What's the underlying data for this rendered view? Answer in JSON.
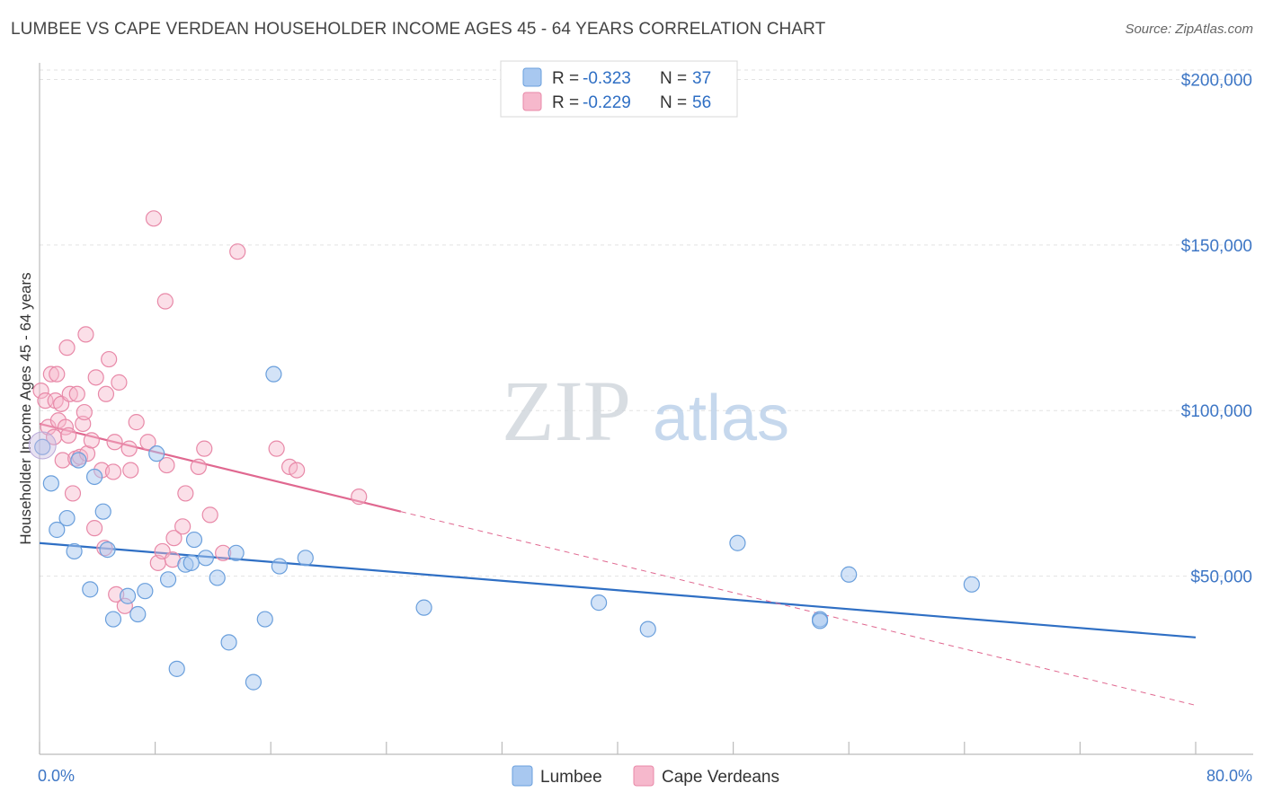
{
  "title": "LUMBEE VS CAPE VERDEAN HOUSEHOLDER INCOME AGES 45 - 64 YEARS CORRELATION CHART",
  "source": "Source: ZipAtlas.com",
  "watermark": {
    "zip": "ZIP",
    "atlas": "atlas"
  },
  "colors": {
    "lumbee_fill": "#a8c8f0",
    "lumbee_stroke": "#6a9fdc",
    "lumbee_line": "#2f6fc4",
    "cape_fill": "#f6b8cc",
    "cape_stroke": "#e889a8",
    "cape_line": "#e06890",
    "tick_label": "#3d76c5"
  },
  "legend": {
    "r_label": "R =",
    "n_label": "N =",
    "entries": [
      {
        "r": "-0.323",
        "n": "37"
      },
      {
        "r": "-0.229",
        "n": "56"
      }
    ]
  },
  "chart_data": {
    "type": "scatter",
    "title": "LUMBEE VS CAPE VERDEAN HOUSEHOLDER INCOME AGES 45 - 64 YEARS CORRELATION CHART",
    "xlabel": "",
    "ylabel": "Householder Income Ages 45 - 64 years",
    "xlim": [
      0,
      80
    ],
    "ylim": [
      0,
      205000
    ],
    "x_tick_labels": [
      "0.0%",
      "80.0%"
    ],
    "y_ticks": [
      50000,
      100000,
      150000,
      200000
    ],
    "y_tick_labels": [
      "$50,000",
      "$100,000",
      "$150,000",
      "$200,000"
    ],
    "grid": true,
    "series": [
      {
        "name": "Lumbee",
        "r": -0.323,
        "n": 37,
        "trend": {
          "x0": 0,
          "y0": 60000,
          "x1": 80,
          "y1": 31500
        },
        "points": [
          [
            0.2,
            89000
          ],
          [
            0.8,
            78000
          ],
          [
            1.2,
            64000
          ],
          [
            1.9,
            67500
          ],
          [
            2.4,
            57500
          ],
          [
            2.7,
            85000
          ],
          [
            3.5,
            46000
          ],
          [
            3.8,
            80000
          ],
          [
            4.4,
            69500
          ],
          [
            4.7,
            58000
          ],
          [
            5.1,
            37000
          ],
          [
            6.1,
            44000
          ],
          [
            6.8,
            38500
          ],
          [
            7.3,
            45500
          ],
          [
            8.1,
            87000
          ],
          [
            8.9,
            49000
          ],
          [
            9.5,
            22000
          ],
          [
            10.1,
            53500
          ],
          [
            10.5,
            54000
          ],
          [
            10.7,
            61000
          ],
          [
            11.5,
            55500
          ],
          [
            12.3,
            49500
          ],
          [
            13.1,
            30000
          ],
          [
            13.6,
            57000
          ],
          [
            14.8,
            18000
          ],
          [
            15.6,
            37000
          ],
          [
            16.2,
            111000
          ],
          [
            16.6,
            53000
          ],
          [
            18.4,
            55500
          ],
          [
            26.6,
            40500
          ],
          [
            38.7,
            42000
          ],
          [
            42.1,
            34000
          ],
          [
            48.3,
            60000
          ],
          [
            54.0,
            37000
          ],
          [
            54.0,
            36500
          ],
          [
            56.0,
            50500
          ],
          [
            64.5,
            47500
          ]
        ]
      },
      {
        "name": "Cape Verdeans",
        "r": -0.229,
        "n": 56,
        "trend": {
          "x0": 0,
          "y0": 96000,
          "x1": 25,
          "y1": 69500
        },
        "trend_dashed": {
          "x0": 25,
          "y0": 69500,
          "x1": 80,
          "y1": 11000
        },
        "points": [
          [
            0.1,
            106000
          ],
          [
            0.4,
            103000
          ],
          [
            0.6,
            95000
          ],
          [
            0.8,
            111000
          ],
          [
            1.0,
            92000
          ],
          [
            1.1,
            103000
          ],
          [
            1.2,
            111000
          ],
          [
            1.3,
            97000
          ],
          [
            1.5,
            102000
          ],
          [
            1.6,
            85000
          ],
          [
            1.8,
            95000
          ],
          [
            1.9,
            119000
          ],
          [
            2.0,
            92500
          ],
          [
            2.1,
            105000
          ],
          [
            2.3,
            75000
          ],
          [
            2.5,
            85500
          ],
          [
            2.6,
            105000
          ],
          [
            2.8,
            86000
          ],
          [
            3.0,
            96000
          ],
          [
            3.1,
            99500
          ],
          [
            3.2,
            123000
          ],
          [
            3.3,
            87000
          ],
          [
            3.6,
            91000
          ],
          [
            3.8,
            64500
          ],
          [
            3.9,
            110000
          ],
          [
            4.3,
            82000
          ],
          [
            4.5,
            58500
          ],
          [
            4.6,
            105000
          ],
          [
            4.8,
            115500
          ],
          [
            5.1,
            81500
          ],
          [
            5.2,
            90500
          ],
          [
            5.3,
            44500
          ],
          [
            5.5,
            108500
          ],
          [
            5.9,
            41000
          ],
          [
            6.2,
            88500
          ],
          [
            6.3,
            82000
          ],
          [
            6.7,
            96500
          ],
          [
            7.5,
            90500
          ],
          [
            7.9,
            158000
          ],
          [
            8.2,
            54000
          ],
          [
            8.5,
            57500
          ],
          [
            8.7,
            133000
          ],
          [
            8.8,
            83500
          ],
          [
            9.2,
            55000
          ],
          [
            9.3,
            61500
          ],
          [
            9.9,
            65000
          ],
          [
            10.1,
            75000
          ],
          [
            11.0,
            83000
          ],
          [
            11.4,
            88500
          ],
          [
            11.8,
            68500
          ],
          [
            12.7,
            57000
          ],
          [
            13.7,
            148000
          ],
          [
            16.4,
            88500
          ],
          [
            17.3,
            83000
          ],
          [
            17.8,
            82000
          ],
          [
            22.1,
            74000
          ]
        ]
      }
    ],
    "legend_position": "top-center"
  },
  "bottom_legend": [
    "Lumbee",
    "Cape Verdeans"
  ]
}
